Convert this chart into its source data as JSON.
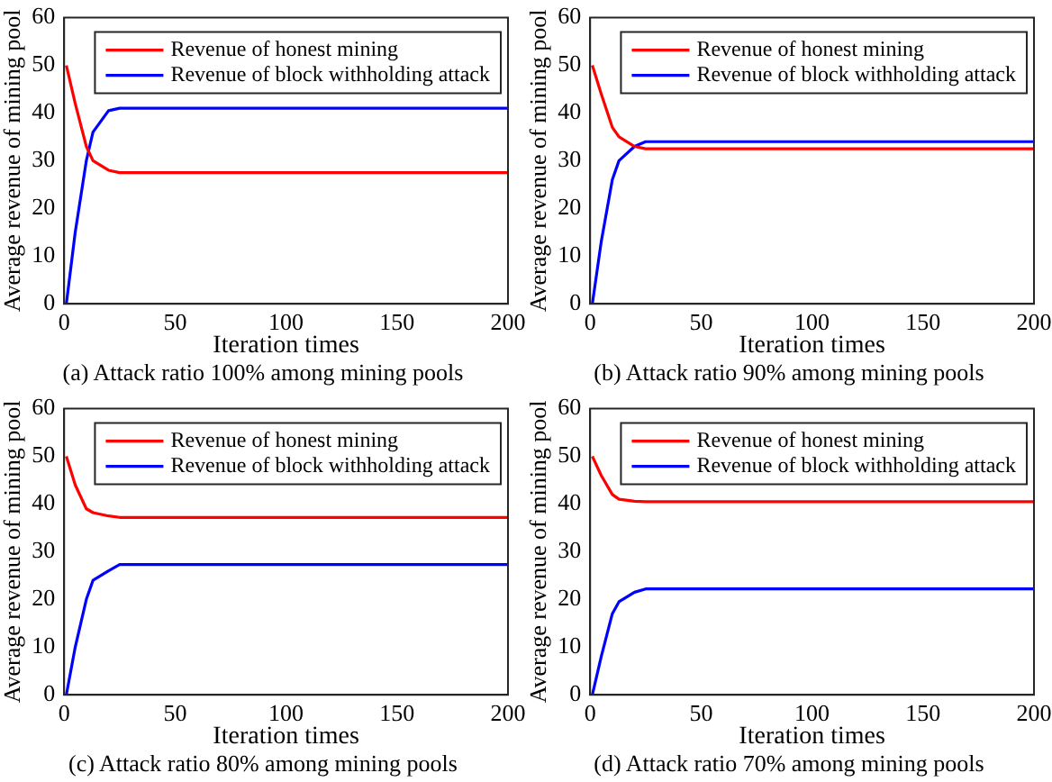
{
  "chart_data": [
    {
      "type": "line",
      "xlabel": "Iteration times",
      "ylabel": "Average revenue of mining pool",
      "annotations": [
        "(a) Attack ratio 100% among mining pools"
      ],
      "x": [
        1,
        5,
        10,
        13,
        20,
        25,
        200
      ],
      "xlim": [
        0,
        200
      ],
      "xticks": [
        0,
        50,
        100,
        150,
        200
      ],
      "ylim": [
        0,
        60
      ],
      "yticks": [
        0,
        10,
        20,
        30,
        40,
        50,
        60
      ],
      "grid": false,
      "legend": "top right",
      "marker": "none",
      "line_style": "solid",
      "series": [
        {
          "name": "Revenue of honest mining",
          "color": "#ff0000",
          "values": [
            50,
            42,
            33,
            30,
            28,
            27.5,
            27.5
          ]
        },
        {
          "name": "Revenue of block withholding attack",
          "color": "#0000ff",
          "values": [
            0,
            15,
            30,
            36,
            40.5,
            41,
            41
          ]
        }
      ]
    },
    {
      "type": "line",
      "xlabel": "Iteration times",
      "ylabel": "Average revenue of mining pool",
      "annotations": [
        "(b) Attack ratio 90% among mining pools"
      ],
      "x": [
        1,
        5,
        10,
        13,
        20,
        25,
        200
      ],
      "xlim": [
        0,
        200
      ],
      "xticks": [
        0,
        50,
        100,
        150,
        200
      ],
      "ylim": [
        0,
        60
      ],
      "yticks": [
        0,
        10,
        20,
        30,
        40,
        50,
        60
      ],
      "grid": false,
      "legend": "top right",
      "marker": "none",
      "line_style": "solid",
      "series": [
        {
          "name": "Revenue of honest mining",
          "color": "#ff0000",
          "values": [
            50,
            44,
            37,
            35,
            33,
            32.5,
            32.5
          ]
        },
        {
          "name": "Revenue of block withholding attack",
          "color": "#0000ff",
          "values": [
            0,
            13,
            26,
            30,
            33,
            34,
            34
          ]
        }
      ]
    },
    {
      "type": "line",
      "xlabel": "Iteration times",
      "ylabel": "Average revenue of mining pool",
      "annotations": [
        "(c) Attack ratio 80% among mining pools"
      ],
      "x": [
        1,
        5,
        10,
        13,
        20,
        25,
        200
      ],
      "xlim": [
        0,
        200
      ],
      "xticks": [
        0,
        50,
        100,
        150,
        200
      ],
      "ylim": [
        0,
        60
      ],
      "yticks": [
        0,
        10,
        20,
        30,
        40,
        50,
        60
      ],
      "grid": false,
      "legend": "top right",
      "marker": "none",
      "line_style": "solid",
      "series": [
        {
          "name": "Revenue of honest mining",
          "color": "#ff0000",
          "values": [
            50,
            44,
            39,
            38.2,
            37.5,
            37.2,
            37.2
          ]
        },
        {
          "name": "Revenue of block withholding attack",
          "color": "#0000ff",
          "values": [
            0,
            10,
            20,
            24,
            26,
            27.3,
            27.3
          ]
        }
      ]
    },
    {
      "type": "line",
      "xlabel": "Iteration times",
      "ylabel": "Average revenue of mining pool",
      "annotations": [
        "(d) Attack ratio 70% among mining pools"
      ],
      "x": [
        1,
        5,
        10,
        13,
        20,
        25,
        200
      ],
      "xlim": [
        0,
        200
      ],
      "xticks": [
        0,
        50,
        100,
        150,
        200
      ],
      "ylim": [
        0,
        60
      ],
      "yticks": [
        0,
        10,
        20,
        30,
        40,
        50,
        60
      ],
      "grid": false,
      "legend": "top right",
      "marker": "none",
      "line_style": "solid",
      "series": [
        {
          "name": "Revenue of honest mining",
          "color": "#ff0000",
          "values": [
            50,
            46,
            42,
            41,
            40.6,
            40.5,
            40.5
          ]
        },
        {
          "name": "Revenue of block withholding attack",
          "color": "#0000ff",
          "values": [
            0,
            8,
            17,
            19.5,
            21.5,
            22.2,
            22.2
          ]
        }
      ]
    }
  ]
}
